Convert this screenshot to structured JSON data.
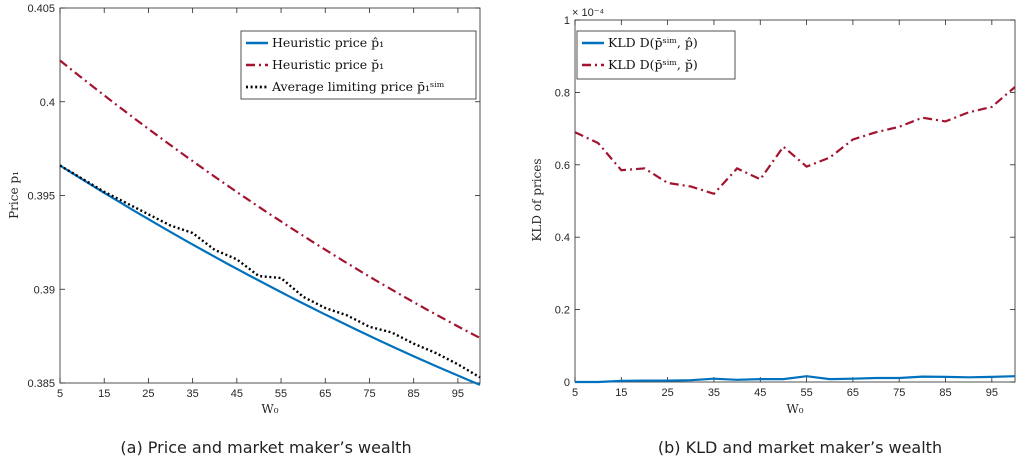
{
  "chart_data": [
    {
      "type": "line",
      "caption": "(a) Price and market maker’s wealth",
      "xlabel": "W₀",
      "ylabel": "Price p₁",
      "xlim": [
        5,
        100
      ],
      "ylim": [
        0.385,
        0.405
      ],
      "xticks": [
        5,
        15,
        25,
        35,
        45,
        55,
        65,
        75,
        85,
        95
      ],
      "yticks": [
        0.385,
        0.39,
        0.395,
        0.4,
        0.405
      ],
      "ytick_labels": [
        "0.385",
        "0.39",
        "0.395",
        "0.4",
        "0.405"
      ],
      "legend_position": "top-right",
      "grid": false,
      "series": [
        {
          "name": "Heuristic price p̂₁",
          "style": "solid",
          "color": "#0072BD",
          "x": [
            5,
            100
          ],
          "y": [
            0.3966,
            0.3849
          ],
          "curve": 0.0003
        },
        {
          "name": "Heuristic price p̆₁",
          "style": "dashdot",
          "color": "#A2142F",
          "x": [
            5,
            100
          ],
          "y": [
            0.4022,
            0.3874
          ],
          "curve": 0.0004
        },
        {
          "name": "Average limiting price p̄₁ˢⁱᵐ",
          "style": "dotted",
          "color": "#000000",
          "x": [
            5,
            10,
            15,
            20,
            25,
            30,
            35,
            40,
            45,
            50,
            55,
            60,
            65,
            70,
            75,
            80,
            85,
            90,
            95,
            100
          ],
          "y": [
            0.3966,
            0.3959,
            0.3952,
            0.3946,
            0.394,
            0.3934,
            0.393,
            0.3921,
            0.3916,
            0.3907,
            0.3906,
            0.3896,
            0.389,
            0.3886,
            0.388,
            0.3877,
            0.3871,
            0.3866,
            0.386,
            0.3853
          ]
        }
      ]
    },
    {
      "type": "line",
      "caption": "(b) KLD and market maker’s wealth",
      "xlabel": "W₀",
      "ylabel": "KLD of prices",
      "xlim": [
        5,
        100
      ],
      "ylim": [
        0,
        1
      ],
      "scale_note": "× 10⁻⁴",
      "xticks": [
        5,
        15,
        25,
        35,
        45,
        55,
        65,
        75,
        85,
        95
      ],
      "yticks": [
        0,
        0.2,
        0.4,
        0.6,
        0.8,
        1
      ],
      "ytick_labels": [
        "0",
        "0.2",
        "0.4",
        "0.6",
        "0.8",
        "1"
      ],
      "legend_position": "top-left",
      "grid": false,
      "series": [
        {
          "name": "KLD D(p̄ˢⁱᵐ, p̂)",
          "style": "solid",
          "color": "#0072BD",
          "x": [
            5,
            10,
            15,
            20,
            25,
            30,
            35,
            40,
            45,
            50,
            55,
            60,
            65,
            70,
            75,
            80,
            85,
            90,
            95,
            100
          ],
          "y": [
            0.0,
            0.0,
            0.003,
            0.004,
            0.004,
            0.005,
            0.009,
            0.006,
            0.008,
            0.008,
            0.016,
            0.008,
            0.009,
            0.011,
            0.011,
            0.015,
            0.014,
            0.013,
            0.014,
            0.016
          ]
        },
        {
          "name": "KLD D(p̄ˢⁱᵐ, p̆)",
          "style": "dashdot",
          "color": "#A2142F",
          "x": [
            5,
            10,
            15,
            20,
            25,
            30,
            35,
            40,
            45,
            50,
            55,
            60,
            65,
            70,
            75,
            80,
            85,
            90,
            95,
            100
          ],
          "y": [
            0.69,
            0.66,
            0.585,
            0.59,
            0.55,
            0.54,
            0.52,
            0.59,
            0.56,
            0.65,
            0.595,
            0.62,
            0.67,
            0.69,
            0.705,
            0.73,
            0.72,
            0.745,
            0.76,
            0.815
          ]
        }
      ]
    }
  ]
}
